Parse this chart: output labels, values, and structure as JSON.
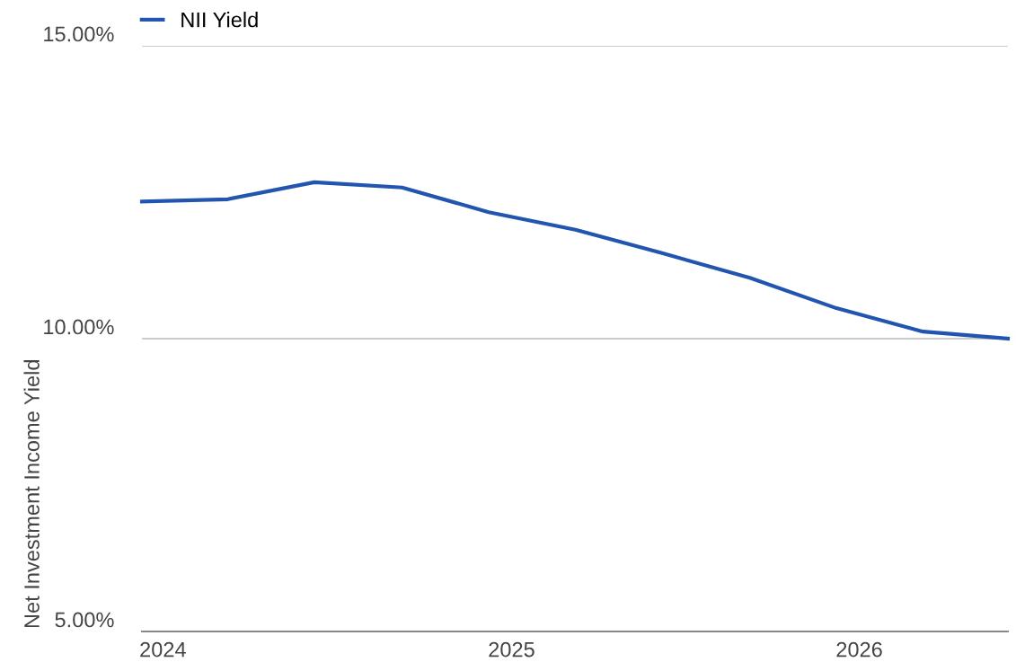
{
  "chart_data": {
    "type": "line",
    "ylabel": "Net Investment Income Yield",
    "x": [
      "2023-12-10",
      "2024-03-09",
      "2024-06-08",
      "2024-09-08",
      "2024-12-08",
      "2025-03-09",
      "2025-06-08",
      "2025-09-08",
      "2025-12-08",
      "2026-03-09",
      "2026-06-06"
    ],
    "series": [
      {
        "name": "NII Yield",
        "color": "#2255b0",
        "values": [
          12.34,
          12.38,
          12.67,
          12.58,
          12.16,
          11.86,
          11.46,
          11.04,
          10.52,
          10.12,
          10.0
        ]
      }
    ],
    "xlim": [
      "2023-12-10",
      "2026-06-06"
    ],
    "xticks": [
      {
        "value": "2024-01-01",
        "label": "2024"
      },
      {
        "value": "2025-01-01",
        "label": "2025"
      },
      {
        "value": "2026-01-01",
        "label": "2026"
      }
    ],
    "ylim": [
      5,
      15
    ],
    "yticks": [
      {
        "value": 5,
        "label": "5.00%"
      },
      {
        "value": 10,
        "label": "10.00%"
      },
      {
        "value": 15,
        "label": "15.00%"
      }
    ],
    "grid": "y",
    "legend": "top left",
    "line_style": "solid",
    "marker": "none"
  }
}
